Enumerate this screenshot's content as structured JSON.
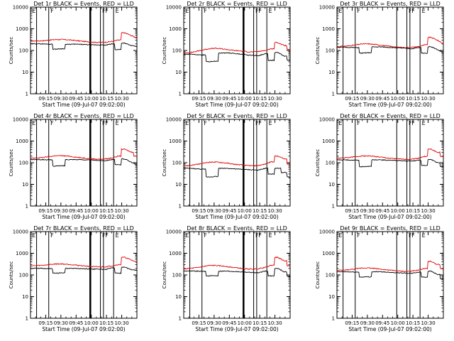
{
  "chart_data": {
    "type": "line",
    "layout": "3x3 panel grid",
    "y_scale": "log",
    "ylim": [
      1,
      10000
    ],
    "y_tick_labels": [
      "1",
      "10",
      "100",
      "1000",
      "10000"
    ],
    "x_tick_labels": [
      "09:15",
      "09:30",
      "09:45",
      "10:00",
      "10:15",
      "10:30"
    ],
    "x_tick_minutes": [
      555,
      570,
      585,
      600,
      615,
      630
    ],
    "xlim_minutes": [
      540,
      645
    ],
    "xlabel": "Start Time (09-Jul-07 09:02:00)",
    "ylabel": "Counts/sec",
    "series_colors": {
      "black": "#000000",
      "red": "#e00000"
    },
    "panels": [
      {
        "title": "Det 1r BLACK = Events, RED = LLD",
        "black_values": [
          200,
          205,
          200,
          195,
          115,
          120,
          190,
          195,
          190,
          185,
          180,
          180,
          175,
          200,
          110,
          220,
          170,
          150
        ],
        "red_values": [
          270,
          275,
          280,
          300,
          320,
          320,
          310,
          290,
          270,
          255,
          240,
          235,
          240,
          260,
          300,
          650,
          500,
          370
        ],
        "vlines": [
          {
            "x": 546,
            "w": 1
          },
          {
            "x": 558,
            "w": 1
          },
          {
            "x": 599,
            "w": 2.5
          },
          {
            "x": 609,
            "w": 1
          },
          {
            "x": 612,
            "w": 1
          },
          {
            "x": 622,
            "w": 1
          }
        ],
        "flags": [
          {
            "x": 541,
            "t": "E"
          },
          {
            "x": 559,
            "t": "F"
          },
          {
            "x": 610,
            "t": "F"
          },
          {
            "x": 613,
            "t": "F"
          },
          {
            "x": 623,
            "t": "E"
          }
        ]
      },
      {
        "title": "Det 2r BLACK = Events, RED = LLD",
        "black_values": [
          65,
          68,
          65,
          62,
          30,
          32,
          75,
          78,
          72,
          68,
          62,
          60,
          58,
          70,
          35,
          80,
          55,
          35
        ],
        "red_values": [
          75,
          80,
          90,
          105,
          120,
          125,
          120,
          110,
          100,
          95,
          88,
          85,
          90,
          100,
          120,
          230,
          170,
          110
        ],
        "vlines": [
          {
            "x": 546,
            "w": 1
          },
          {
            "x": 558,
            "w": 1
          },
          {
            "x": 599,
            "w": 2.5
          },
          {
            "x": 609,
            "w": 1
          },
          {
            "x": 612,
            "w": 1
          },
          {
            "x": 622,
            "w": 1
          }
        ],
        "flags": [
          {
            "x": 541,
            "t": "E"
          },
          {
            "x": 559,
            "t": "F"
          },
          {
            "x": 610,
            "t": "F"
          },
          {
            "x": 613,
            "t": "F"
          },
          {
            "x": 623,
            "t": "E"
          }
        ]
      },
      {
        "title": "Det 3r BLACK = Events, RED = LLD",
        "black_values": [
          140,
          140,
          138,
          135,
          75,
          78,
          145,
          145,
          140,
          135,
          130,
          125,
          120,
          135,
          75,
          150,
          110,
          75
        ],
        "red_values": [
          150,
          155,
          165,
          180,
          200,
          200,
          190,
          175,
          160,
          150,
          140,
          135,
          140,
          150,
          180,
          400,
          300,
          200
        ],
        "vlines": [
          {
            "x": 546,
            "w": 1
          },
          {
            "x": 558,
            "w": 1
          },
          {
            "x": 599,
            "w": 1
          },
          {
            "x": 609,
            "w": 1
          },
          {
            "x": 612,
            "w": 1
          },
          {
            "x": 622,
            "w": 1
          }
        ],
        "flags": [
          {
            "x": 541,
            "t": "E"
          },
          {
            "x": 559,
            "t": "F"
          },
          {
            "x": 610,
            "t": "F"
          },
          {
            "x": 613,
            "t": "F"
          },
          {
            "x": 623,
            "t": "E"
          }
        ]
      },
      {
        "title": "Det 4r BLACK = Events, RED = LLD",
        "black_values": [
          140,
          140,
          138,
          135,
          70,
          72,
          140,
          140,
          138,
          135,
          130,
          128,
          125,
          140,
          80,
          150,
          110,
          75
        ],
        "red_values": [
          160,
          165,
          175,
          190,
          210,
          210,
          200,
          185,
          170,
          160,
          150,
          145,
          150,
          165,
          200,
          420,
          310,
          200
        ],
        "vlines": [
          {
            "x": 546,
            "w": 1
          },
          {
            "x": 558,
            "w": 1
          },
          {
            "x": 599,
            "w": 2.5
          },
          {
            "x": 609,
            "w": 1
          },
          {
            "x": 612,
            "w": 1
          },
          {
            "x": 622,
            "w": 1
          }
        ],
        "flags": [
          {
            "x": 541,
            "t": "E"
          },
          {
            "x": 559,
            "t": "F"
          },
          {
            "x": 610,
            "t": "F"
          },
          {
            "x": 613,
            "t": "F"
          },
          {
            "x": 623,
            "t": "E"
          }
        ]
      },
      {
        "title": "Det 5r BLACK = Events, RED = LLD",
        "black_values": [
          55,
          55,
          52,
          50,
          22,
          23,
          55,
          55,
          52,
          50,
          48,
          47,
          45,
          55,
          30,
          55,
          35,
          22
        ],
        "red_values": [
          70,
          75,
          82,
          92,
          105,
          108,
          102,
          95,
          85,
          80,
          75,
          72,
          75,
          85,
          110,
          200,
          150,
          90
        ],
        "vlines": [
          {
            "x": 546,
            "w": 1
          },
          {
            "x": 558,
            "w": 1
          },
          {
            "x": 599,
            "w": 2.5
          },
          {
            "x": 609,
            "w": 1
          },
          {
            "x": 612,
            "w": 1
          },
          {
            "x": 622,
            "w": 1
          }
        ],
        "flags": [
          {
            "x": 541,
            "t": "E"
          },
          {
            "x": 559,
            "t": "F"
          },
          {
            "x": 610,
            "t": "F"
          },
          {
            "x": 613,
            "t": "F"
          },
          {
            "x": 623,
            "t": "E"
          }
        ]
      },
      {
        "title": "Det 6r BLACK = Events, RED = LLD",
        "black_values": [
          135,
          135,
          132,
          130,
          65,
          68,
          135,
          135,
          130,
          128,
          125,
          120,
          118,
          130,
          75,
          140,
          100,
          65
        ],
        "red_values": [
          160,
          165,
          175,
          190,
          205,
          205,
          195,
          180,
          165,
          155,
          148,
          142,
          148,
          160,
          195,
          420,
          300,
          190
        ],
        "vlines": [
          {
            "x": 546,
            "w": 1
          },
          {
            "x": 558,
            "w": 1
          },
          {
            "x": 599,
            "w": 1
          },
          {
            "x": 609,
            "w": 1
          },
          {
            "x": 612,
            "w": 1
          },
          {
            "x": 622,
            "w": 1
          }
        ],
        "flags": [
          {
            "x": 541,
            "t": "E"
          },
          {
            "x": 559,
            "t": "F"
          },
          {
            "x": 610,
            "t": "F"
          },
          {
            "x": 613,
            "t": "F"
          },
          {
            "x": 623,
            "t": "E"
          }
        ]
      },
      {
        "title": "Det 7r BLACK = Events, RED = LLD",
        "black_values": [
          200,
          205,
          200,
          195,
          120,
          125,
          200,
          200,
          195,
          190,
          185,
          185,
          180,
          210,
          120,
          230,
          180,
          160
        ],
        "red_values": [
          260,
          270,
          280,
          300,
          320,
          320,
          310,
          290,
          270,
          255,
          240,
          235,
          240,
          260,
          300,
          650,
          500,
          370
        ],
        "vlines": [
          {
            "x": 546,
            "w": 1
          },
          {
            "x": 558,
            "w": 1
          },
          {
            "x": 599,
            "w": 2.5
          },
          {
            "x": 609,
            "w": 1
          },
          {
            "x": 612,
            "w": 1
          },
          {
            "x": 622,
            "w": 1
          }
        ],
        "flags": [
          {
            "x": 541,
            "t": "E"
          },
          {
            "x": 559,
            "t": "F"
          },
          {
            "x": 610,
            "t": "F"
          },
          {
            "x": 613,
            "t": "F"
          },
          {
            "x": 623,
            "t": "E"
          }
        ]
      },
      {
        "title": "Det 8r BLACK = Events, RED = LLD",
        "black_values": [
          150,
          155,
          150,
          145,
          90,
          92,
          150,
          150,
          145,
          140,
          135,
          130,
          125,
          150,
          90,
          200,
          140,
          85
        ],
        "red_values": [
          190,
          200,
          215,
          240,
          270,
          275,
          260,
          240,
          220,
          205,
          190,
          185,
          195,
          220,
          280,
          650,
          450,
          270
        ],
        "vlines": [
          {
            "x": 546,
            "w": 1
          },
          {
            "x": 558,
            "w": 1
          },
          {
            "x": 599,
            "w": 2.5
          },
          {
            "x": 609,
            "w": 1
          },
          {
            "x": 612,
            "w": 1
          },
          {
            "x": 622,
            "w": 1
          }
        ],
        "flags": [
          {
            "x": 541,
            "t": "E"
          },
          {
            "x": 559,
            "t": "F"
          },
          {
            "x": 610,
            "t": "F"
          },
          {
            "x": 613,
            "t": "F"
          },
          {
            "x": 623,
            "t": "E"
          }
        ]
      },
      {
        "title": "Det 9r BLACK = Events, RED = LLD",
        "black_values": [
          140,
          140,
          138,
          135,
          80,
          82,
          140,
          140,
          135,
          130,
          125,
          122,
          118,
          135,
          80,
          150,
          105,
          65
        ],
        "red_values": [
          160,
          165,
          175,
          190,
          210,
          210,
          200,
          185,
          170,
          160,
          150,
          145,
          150,
          165,
          200,
          420,
          300,
          190
        ],
        "vlines": [
          {
            "x": 546,
            "w": 1
          },
          {
            "x": 558,
            "w": 1
          },
          {
            "x": 599,
            "w": 1
          },
          {
            "x": 609,
            "w": 1
          },
          {
            "x": 612,
            "w": 1
          },
          {
            "x": 622,
            "w": 1
          }
        ],
        "flags": [
          {
            "x": 541,
            "t": "E"
          },
          {
            "x": 559,
            "t": "F"
          },
          {
            "x": 610,
            "t": "F"
          },
          {
            "x": 613,
            "t": "F"
          },
          {
            "x": 623,
            "t": "E"
          }
        ]
      }
    ]
  }
}
